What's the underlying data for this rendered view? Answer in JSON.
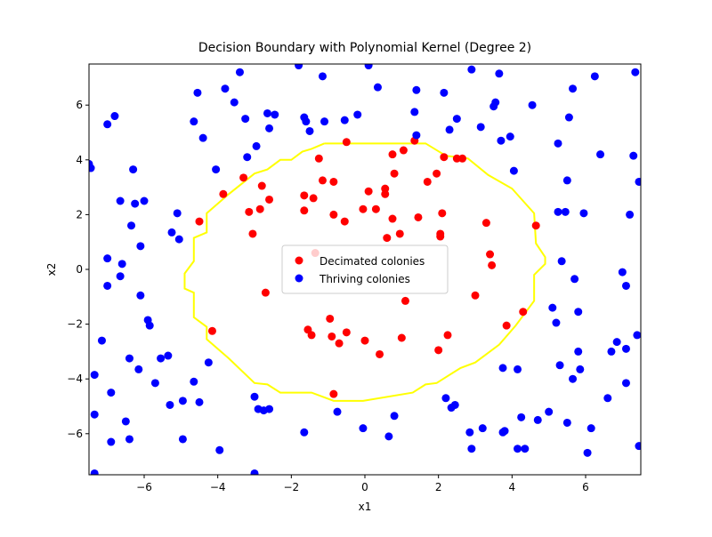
{
  "chart_data": {
    "type": "scatter",
    "title": "Decision Boundary with Polynomial Kernel (Degree 2)",
    "x_label": "x1",
    "y_label": "x2",
    "xlim": [
      -7.5,
      7.5
    ],
    "ylim": [
      -7.5,
      7.5
    ],
    "xticks": [
      {
        "value": -6,
        "label": "−6"
      },
      {
        "value": -4,
        "label": "−4"
      },
      {
        "value": -2,
        "label": "−2"
      },
      0,
      2,
      4,
      6
    ],
    "yticks": [
      {
        "value": -6,
        "label": "−6"
      },
      {
        "value": -4,
        "label": "−4"
      },
      {
        "value": -2,
        "label": "−2"
      },
      0,
      2,
      4,
      6
    ],
    "legend": "center",
    "boundary": {
      "color": "#ffff00",
      "x": [
        -1.1,
        1.65,
        2.2,
        2.8,
        3.35,
        4.0,
        4.6,
        4.65,
        4.9,
        4.9,
        4.6,
        4.6,
        4.1,
        3.65,
        3.0,
        2.6,
        1.95,
        1.65,
        1.3,
        -0.05,
        -0.85,
        -1.45,
        -2.3,
        -2.65,
        -3.0,
        -3.7,
        -4.3,
        -4.3,
        -4.65,
        -4.65,
        -4.9,
        -4.9,
        -4.65,
        -4.65,
        -4.3,
        -4.3,
        -3.7,
        -3.0,
        -2.65,
        -2.3,
        -2.0,
        -1.7,
        -1.45,
        -1.1
      ],
      "y": [
        4.6,
        4.6,
        4.15,
        4.05,
        3.45,
        2.95,
        2.05,
        0.95,
        0.45,
        0.2,
        -0.2,
        -1.15,
        -2.05,
        -2.75,
        -3.4,
        -3.6,
        -4.15,
        -4.2,
        -4.5,
        -4.8,
        -4.8,
        -4.5,
        -4.5,
        -4.2,
        -4.15,
        -3.25,
        -2.55,
        -2.1,
        -1.75,
        -0.85,
        -0.7,
        -0.15,
        0.3,
        1.15,
        1.35,
        2.05,
        2.75,
        3.5,
        3.65,
        4.0,
        4.0,
        4.3,
        4.4,
        4.6
      ]
    },
    "series": [
      {
        "name": "Decimated colonies",
        "color": "#ff0000",
        "x": [
          -4.5,
          -3.85,
          -3.3,
          -3.15,
          -2.8,
          -2.85,
          -2.6,
          -3.05,
          -2.7,
          -4.15,
          -1.65,
          -1.65,
          -1.4,
          -1.25,
          -1.15,
          -0.85,
          -0.85,
          -0.55,
          -0.5,
          -0.05,
          0.1,
          0.3,
          0.55,
          0.55,
          0.6,
          0.75,
          0.8,
          0.75,
          1.05,
          1.35,
          0.95,
          1.45,
          1.7,
          1.95,
          2.15,
          2.1,
          2.05,
          2.05,
          2.5,
          2.65,
          -1.35,
          3.3,
          3.4,
          3.45,
          3.0,
          1.1,
          -0.95,
          -1.55,
          -1.45,
          -0.9,
          -0.7,
          -0.5,
          0,
          0.4,
          1.0,
          2.0,
          2.25,
          3.85,
          4.3,
          -0.85,
          4.65
        ],
        "y": [
          1.75,
          2.75,
          3.35,
          2.1,
          3.05,
          2.2,
          2.55,
          1.3,
          -0.85,
          -2.25,
          2.7,
          2.15,
          2.6,
          4.05,
          3.25,
          3.2,
          2.0,
          1.75,
          4.65,
          2.2,
          2.85,
          2.2,
          2.95,
          2.75,
          1.15,
          4.2,
          3.5,
          1.85,
          4.35,
          4.7,
          1.3,
          1.9,
          3.2,
          3.5,
          4.1,
          2.05,
          1.3,
          1.2,
          4.05,
          4.05,
          0.6,
          1.7,
          0.55,
          0.15,
          -0.95,
          -1.15,
          -1.8,
          -2.2,
          -2.4,
          -2.45,
          -2.7,
          -2.3,
          -2.6,
          -3.1,
          -2.5,
          -2.95,
          -2.4,
          -2.05,
          -1.55,
          -4.55,
          1.6
        ]
      },
      {
        "name": "Thriving colonies",
        "color": "#0000ff",
        "x": [
          -7.5,
          -7.45,
          -7.0,
          -6.8,
          -6.65,
          -6.6,
          -7.0,
          -7.0,
          -6.65,
          -6.3,
          -6.25,
          -6.35,
          -6.1,
          -6.0,
          -6.1,
          -5.9,
          -5.85,
          -7.15,
          -6.4,
          -6.15,
          -5.55,
          -5.7,
          -5.35,
          -5.25,
          -5.1,
          -5.05,
          -7.35,
          -6.9,
          -7.35,
          -6.5,
          -6.9,
          -6.4,
          -7.35,
          -5.3,
          -4.95,
          -4.95,
          -4.65,
          -4.5,
          -4.25,
          -3.95,
          -4.4,
          -4.65,
          -4.55,
          -4.05,
          -3.8,
          -3.55,
          -3.4,
          -3.25,
          -3.2,
          -2.95,
          -2.65,
          -2.45,
          -2.6,
          -3.0,
          -3.0,
          -2.9,
          -2.75,
          -2.6,
          -1.8,
          -1.65,
          -1.6,
          -1.5,
          -1.15,
          -1.1,
          -0.55,
          -0.2,
          0.1,
          0.35,
          -1.65,
          -0.75,
          -0.05,
          0.65,
          0.8,
          1.35,
          1.4,
          1.4,
          2.15,
          2.3,
          2.5,
          2.9,
          3.15,
          3.5,
          3.55,
          3.65,
          3.7,
          3.95,
          4.05,
          4.55,
          5.25,
          5.65,
          5.55,
          6.25,
          6.4,
          5.5,
          5.25,
          5.45,
          5.95,
          7.35,
          7.3,
          7.2,
          7.45,
          5.35,
          5.7,
          5.1,
          5.8,
          5.2,
          7.0,
          7.1,
          7.4,
          6.85,
          6.7,
          7.1,
          5.8,
          5.3,
          5.85,
          5.65,
          7.1,
          6.6,
          3.75,
          4.15,
          4.25,
          4.7,
          5.0,
          5.5,
          6.15,
          6.05,
          7.45,
          4.15,
          4.35,
          3.8,
          3.75,
          3.2,
          2.85,
          2.9,
          2.35,
          2.45,
          2.2
        ],
        "y": [
          3.85,
          3.7,
          5.3,
          5.6,
          2.5,
          0.2,
          0.4,
          -0.6,
          -0.25,
          3.65,
          2.4,
          1.6,
          0.85,
          2.5,
          -0.95,
          -1.85,
          -2.05,
          -2.6,
          -3.25,
          -3.65,
          -3.25,
          -4.15,
          -3.15,
          1.35,
          2.05,
          1.1,
          -3.85,
          -4.5,
          -5.3,
          -5.55,
          -6.3,
          -6.2,
          -7.45,
          -4.95,
          -4.8,
          -6.2,
          -4.1,
          -4.85,
          -3.4,
          -6.6,
          4.8,
          5.4,
          6.45,
          3.65,
          6.6,
          6.1,
          7.2,
          5.5,
          4.1,
          4.5,
          5.7,
          5.65,
          5.15,
          -7.45,
          -4.65,
          -5.1,
          -5.15,
          -5.1,
          7.45,
          5.55,
          5.4,
          5.05,
          7.05,
          5.4,
          5.45,
          5.65,
          7.45,
          6.65,
          -5.95,
          -5.2,
          -5.8,
          -6.1,
          -5.35,
          5.75,
          6.55,
          4.9,
          6.45,
          5.1,
          5.5,
          7.3,
          5.2,
          5.95,
          6.1,
          7.15,
          4.7,
          4.85,
          3.6,
          6.0,
          4.6,
          6.6,
          5.55,
          7.05,
          4.2,
          3.25,
          2.1,
          2.1,
          2.05,
          7.2,
          4.15,
          2.0,
          3.2,
          0.3,
          -0.35,
          -1.4,
          -1.55,
          -1.95,
          -0.1,
          -0.6,
          -2.4,
          -2.65,
          -3.0,
          -2.9,
          -3.0,
          -3.5,
          -3.65,
          -4.0,
          -4.15,
          -4.7,
          -3.6,
          -3.65,
          -5.4,
          -5.5,
          -5.2,
          -5.6,
          -5.8,
          -6.7,
          -6.45,
          -6.55,
          -6.55,
          -5.9,
          -5.95,
          -5.8,
          -5.95,
          -6.55,
          -5.05,
          -4.95,
          -4.7
        ]
      }
    ]
  }
}
